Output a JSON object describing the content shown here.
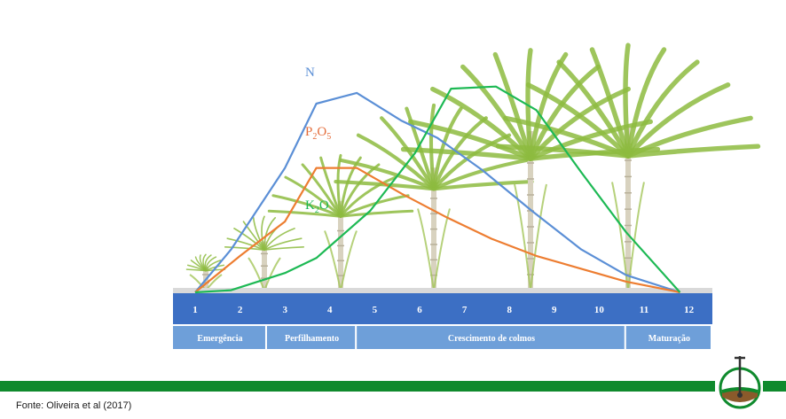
{
  "chart_data": {
    "type": "line",
    "x": [
      1,
      2,
      3,
      4,
      5,
      6,
      7,
      8,
      9,
      10,
      11,
      12
    ],
    "tick_labels": [
      "1",
      "2",
      "3",
      "4",
      "5",
      "6",
      "7",
      "8",
      "9",
      "10",
      "11",
      "12"
    ],
    "ylim": [
      0,
      100
    ],
    "grid": false,
    "series": [
      {
        "name": "N",
        "color": "#5b8fd6",
        "points": [
          [
            1,
            0
          ],
          [
            1.8,
            20
          ],
          [
            3,
            58
          ],
          [
            3.7,
            88
          ],
          [
            4.6,
            93
          ],
          [
            5.6,
            80
          ],
          [
            6.4,
            72
          ],
          [
            7.4,
            57
          ],
          [
            8.5,
            38
          ],
          [
            9.6,
            20
          ],
          [
            10.6,
            8
          ],
          [
            11.8,
            0
          ]
        ]
      },
      {
        "name": "P2O5",
        "label_main": "P",
        "label_sub1": "2",
        "label_mid": "O",
        "label_sub2": "5",
        "color": "#ed7d31",
        "points": [
          [
            1,
            0
          ],
          [
            2,
            17
          ],
          [
            3,
            33
          ],
          [
            3.7,
            58
          ],
          [
            4.6,
            58
          ],
          [
            5.6,
            46
          ],
          [
            6.6,
            35
          ],
          [
            7.6,
            25
          ],
          [
            8.6,
            17
          ],
          [
            9.6,
            11
          ],
          [
            10.6,
            5
          ],
          [
            11.8,
            0
          ]
        ]
      },
      {
        "name": "K2O",
        "label_main": "K",
        "label_sub1": "2",
        "label_mid": "O",
        "label_sub2": "",
        "color": "#1db954",
        "points": [
          [
            1,
            0
          ],
          [
            1.8,
            1
          ],
          [
            3,
            9
          ],
          [
            3.7,
            16
          ],
          [
            4.9,
            38
          ],
          [
            5.9,
            65
          ],
          [
            6.7,
            95
          ],
          [
            7.7,
            96
          ],
          [
            8.6,
            85
          ],
          [
            9.6,
            56
          ],
          [
            10.6,
            28
          ],
          [
            11.8,
            0
          ]
        ]
      }
    ],
    "phases": [
      {
        "label": "Emergência",
        "from": 0.5,
        "to": 2.6
      },
      {
        "label": "Perfilhamento",
        "from": 2.6,
        "to": 4.6
      },
      {
        "label": "Crescimento de colmos",
        "from": 4.6,
        "to": 10.6
      },
      {
        "label": "Maturação",
        "from": 10.6,
        "to": 13.1
      }
    ]
  },
  "footer": {
    "source": "Fonte: Oliveira et al (2017)"
  },
  "colors": {
    "axis_bar": "#3c6fc4",
    "phase_bar": "#6e9fd9",
    "green_bar": "#0f8a2d",
    "plant": "#8dbb3f"
  }
}
